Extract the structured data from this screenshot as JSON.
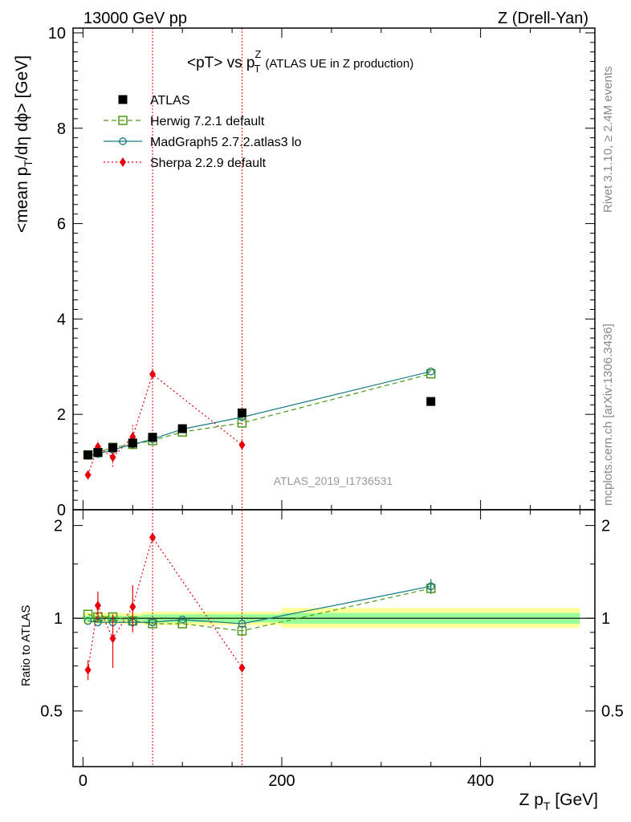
{
  "header": {
    "left": "13000 GeV pp",
    "right": "Z (Drell-Yan)"
  },
  "chart_data": {
    "type": "scatter",
    "title": "<pT> vs p",
    "title_sup": "Z",
    "title_sub": "T",
    "title_suffix": "(ATLAS UE in Z production)",
    "analysis_id": "ATLAS_2019_I1736531",
    "side_text_top": "Rivet 3.1.10, ≥ 2.4M events",
    "side_text_bottom": "mcplots.cern.ch [arXiv:1306.3436]",
    "xlabel": "Z p",
    "xlabel_sub": "T",
    "xlabel_suffix": " [GeV]",
    "ylabel_parts": [
      "<mean p",
      "T",
      "/dη dϕ> [GeV]"
    ],
    "ratio_ylabel": "Ratio to ATLAS",
    "xlim": [
      -10,
      515
    ],
    "ylim": [
      0,
      10.1
    ],
    "ratio_ylim": [
      0.33,
      2.25
    ],
    "x_ticks": [
      0,
      200,
      400
    ],
    "y_ticks": [
      0,
      2,
      4,
      6,
      8,
      10
    ],
    "ratio_ticks": [
      0.5,
      1,
      2
    ],
    "ratio_tick_labels": [
      "0.5",
      "1",
      "2"
    ],
    "vlines": [
      70,
      160
    ],
    "legend_placement": "top-left",
    "data": {
      "name": "ATLAS",
      "color": "#000000",
      "x": [
        5,
        15,
        30,
        50,
        70,
        100,
        160,
        350
      ],
      "y": [
        1.15,
        1.2,
        1.3,
        1.4,
        1.52,
        1.7,
        2.03,
        2.27
      ],
      "band_edges": [
        0,
        10,
        20,
        40,
        60,
        80,
        120,
        200,
        500
      ],
      "band_yellow": [
        [
          0.96,
          1.04
        ],
        [
          0.96,
          1.04
        ],
        [
          0.96,
          1.04
        ],
        [
          0.96,
          1.04
        ],
        [
          0.95,
          1.05
        ],
        [
          0.95,
          1.05
        ],
        [
          0.95,
          1.05
        ],
        [
          0.93,
          1.08
        ]
      ],
      "band_green": [
        [
          0.98,
          1.02
        ],
        [
          0.98,
          1.02
        ],
        [
          0.98,
          1.02
        ],
        [
          0.98,
          1.02
        ],
        [
          0.97,
          1.03
        ],
        [
          0.97,
          1.03
        ],
        [
          0.97,
          1.03
        ],
        [
          0.96,
          1.04
        ]
      ]
    },
    "series": [
      {
        "name": "Herwig 7.2.1 default",
        "color": "#4c9a17",
        "marker": "open-square",
        "dash": "6,4",
        "x": [
          5,
          15,
          30,
          50,
          70,
          100,
          160,
          350
        ],
        "y": [
          1.15,
          1.2,
          1.31,
          1.37,
          1.45,
          1.63,
          1.82,
          2.85
        ],
        "ratio": [
          1.03,
          1.01,
          1.01,
          0.98,
          0.96,
          0.96,
          0.91,
          1.25
        ],
        "ratio_err": [
          0,
          0.02,
          0.02,
          0.02,
          0,
          0,
          0.03,
          0.05
        ]
      },
      {
        "name": "MadGraph5 2.7.2.atlas3 lo",
        "color": "#167a80",
        "marker": "open-circle",
        "dash": "",
        "x": [
          5,
          15,
          30,
          50,
          70,
          100,
          160,
          350
        ],
        "y": [
          1.13,
          1.17,
          1.26,
          1.37,
          1.48,
          1.69,
          1.94,
          2.9
        ],
        "ratio": [
          0.98,
          0.97,
          0.97,
          0.97,
          0.97,
          0.99,
          0.96,
          1.27
        ],
        "ratio_err": [
          0,
          0,
          0,
          0,
          0,
          0,
          0,
          0.07
        ]
      },
      {
        "name": "Sherpa 2.2.9 default",
        "color": "#e8000b",
        "marker": "filled-diamond",
        "dash": "2,3",
        "x": [
          5,
          15,
          30,
          50,
          70,
          160
        ],
        "y": [
          0.73,
          1.32,
          1.1,
          1.53,
          2.84,
          1.36
        ],
        "y_err": [
          0.06,
          0.14,
          0.2,
          0.26,
          0,
          0
        ],
        "ratio": [
          0.68,
          1.1,
          0.86,
          1.09,
          1.83,
          0.69
        ],
        "ratio_err": [
          0.05,
          0.12,
          0.17,
          0.19,
          0,
          0
        ]
      }
    ]
  }
}
